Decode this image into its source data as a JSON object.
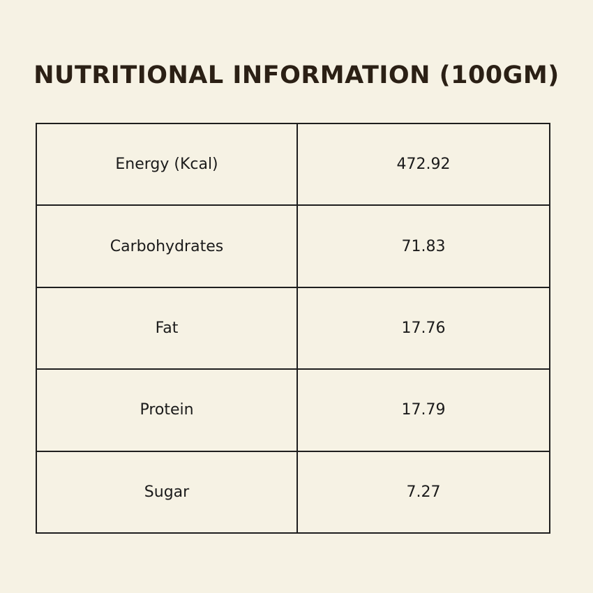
{
  "title": "NUTRITIONAL INFORMATION (100GM)",
  "table": {
    "rows": [
      {
        "label": "Energy (Kcal)",
        "value": "472.92"
      },
      {
        "label": "Carbohydrates",
        "value": "71.83"
      },
      {
        "label": "Fat",
        "value": "17.76"
      },
      {
        "label": "Protein",
        "value": "17.79"
      },
      {
        "label": "Sugar",
        "value": "7.27"
      }
    ]
  },
  "colors": {
    "background": "#f6f2e4",
    "title": "#2b2015",
    "border": "#1e1e1e"
  }
}
